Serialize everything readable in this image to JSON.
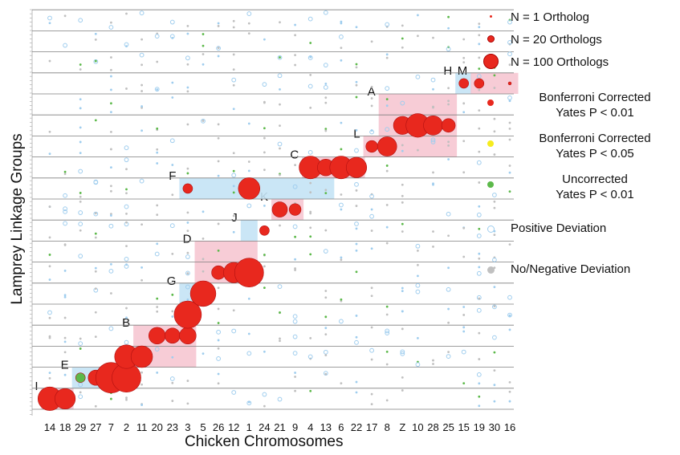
{
  "chart_data": {
    "type": "scatter",
    "xlabel": "Chicken Chromosomes",
    "ylabel": "Lamprey Linkage Groups",
    "x_categories": [
      "14",
      "18",
      "29",
      "27",
      "7",
      "2",
      "11",
      "20",
      "23",
      "3",
      "5",
      "26",
      "12",
      "1",
      "24",
      "21",
      "9",
      "4",
      "13",
      "6",
      "22",
      "17",
      "8",
      "Z",
      "10",
      "28",
      "25",
      "15",
      "19",
      "30",
      "16"
    ],
    "y_rows": 19,
    "legend": [
      {
        "key": "n1",
        "label": "N = 1 Ortholog",
        "type": "size",
        "color": "#e8281e",
        "size_n": 1
      },
      {
        "key": "n20",
        "label": "N = 20 Orthologs",
        "type": "size",
        "color": "#e8281e",
        "size_n": 20
      },
      {
        "key": "n100",
        "label": "N = 100 Orthologs",
        "type": "size",
        "color": "#e8281e",
        "size_n": 100
      },
      {
        "key": "bonf01",
        "label": "Bonferroni Corrected\nYates P < 0.01",
        "type": "category",
        "color": "#e8281e"
      },
      {
        "key": "bonf05",
        "label": "Bonferroni Corrected\nYates P < 0.05",
        "type": "category",
        "color": "#f6ec1e"
      },
      {
        "key": "uncorr",
        "label": "Uncorrected\nYates P < 0.01",
        "type": "category",
        "color": "#5cb94a"
      },
      {
        "key": "pos",
        "label": "Positive Deviation",
        "type": "category",
        "color": "#9fcdee"
      },
      {
        "key": "neg",
        "label": "No/Negative Deviation",
        "type": "category",
        "color": "#c0c0c0"
      }
    ],
    "blocks": [
      {
        "label": "I",
        "color": "pink",
        "x": [
          "14",
          "18"
        ],
        "rows": [
          1,
          1
        ]
      },
      {
        "label": "E",
        "color": "blue",
        "x": [
          "29",
          "27"
        ],
        "rows": [
          2,
          2
        ]
      },
      {
        "label": "B",
        "color": "pink",
        "x": [
          "11",
          "3"
        ],
        "rows": [
          3,
          4
        ]
      },
      {
        "label": "G",
        "color": "blue",
        "x": [
          "3",
          "3"
        ],
        "rows": [
          5,
          6
        ]
      },
      {
        "label": "D",
        "color": "pink",
        "x": [
          "5",
          "1"
        ],
        "rows": [
          7,
          8
        ]
      },
      {
        "label": "J",
        "color": "blue",
        "x": [
          "1",
          "1"
        ],
        "rows": [
          9,
          9
        ]
      },
      {
        "label": "K",
        "color": "pink",
        "x": [
          "21",
          "9"
        ],
        "rows": [
          10,
          10
        ]
      },
      {
        "label": "F",
        "color": "blue",
        "x": [
          "3",
          "13"
        ],
        "rows": [
          11,
          11
        ]
      },
      {
        "label": "C",
        "color": "pink",
        "x": [
          "4",
          "22"
        ],
        "rows": [
          12,
          12
        ]
      },
      {
        "label": "L",
        "color": "pink",
        "x": [
          "17",
          "17"
        ],
        "rows": [
          13,
          13
        ]
      },
      {
        "label": "A",
        "color": "pink",
        "x": [
          "8",
          "25"
        ],
        "rows": [
          13,
          15
        ]
      },
      {
        "label": "H",
        "color": "blue",
        "x": [
          "15",
          "15"
        ],
        "rows": [
          16,
          16
        ]
      },
      {
        "label": "M",
        "color": "pink",
        "x": [
          "19",
          "16"
        ],
        "rows": [
          16,
          16
        ]
      }
    ],
    "points": [
      {
        "x": "14",
        "row": 1,
        "n": 60,
        "c": "red"
      },
      {
        "x": "18",
        "row": 1,
        "n": 45,
        "c": "red"
      },
      {
        "x": "29",
        "row": 2,
        "n": 10,
        "c": "green"
      },
      {
        "x": "27",
        "row": 2,
        "n": 25,
        "c": "red"
      },
      {
        "x": "7",
        "row": 2,
        "n": 100,
        "c": "red"
      },
      {
        "x": "2",
        "row": 2,
        "n": 90,
        "c": "red"
      },
      {
        "x": "2",
        "row": 3,
        "n": 60,
        "c": "red"
      },
      {
        "x": "11",
        "row": 3,
        "n": 50,
        "c": "red"
      },
      {
        "x": "20",
        "row": 4,
        "n": 30,
        "c": "red"
      },
      {
        "x": "23",
        "row": 4,
        "n": 25,
        "c": "red"
      },
      {
        "x": "3",
        "row": 4,
        "n": 30,
        "c": "red"
      },
      {
        "x": "3",
        "row": 5,
        "n": 80,
        "c": "red"
      },
      {
        "x": "5",
        "row": 6,
        "n": 70,
        "c": "red"
      },
      {
        "x": "26",
        "row": 7,
        "n": 20,
        "c": "red"
      },
      {
        "x": "12",
        "row": 7,
        "n": 45,
        "c": "red"
      },
      {
        "x": "1",
        "row": 7,
        "n": 90,
        "c": "red"
      },
      {
        "x": "24",
        "row": 9,
        "n": 10,
        "c": "red"
      },
      {
        "x": "21",
        "row": 10,
        "n": 25,
        "c": "red"
      },
      {
        "x": "9",
        "row": 10,
        "n": 15,
        "c": "red"
      },
      {
        "x": "3",
        "row": 11,
        "n": 10,
        "c": "red"
      },
      {
        "x": "1",
        "row": 11,
        "n": 50,
        "c": "red"
      },
      {
        "x": "4",
        "row": 12,
        "n": 55,
        "c": "red"
      },
      {
        "x": "13",
        "row": 12,
        "n": 30,
        "c": "red"
      },
      {
        "x": "6",
        "row": 12,
        "n": 55,
        "c": "red"
      },
      {
        "x": "22",
        "row": 12,
        "n": 45,
        "c": "red"
      },
      {
        "x": "17",
        "row": 13,
        "n": 15,
        "c": "red"
      },
      {
        "x": "8",
        "row": 13,
        "n": 40,
        "c": "red"
      },
      {
        "x": "Z",
        "row": 14,
        "n": 35,
        "c": "red"
      },
      {
        "x": "10",
        "row": 14,
        "n": 60,
        "c": "red"
      },
      {
        "x": "28",
        "row": 14,
        "n": 40,
        "c": "red"
      },
      {
        "x": "25",
        "row": 14,
        "n": 20,
        "c": "red"
      },
      {
        "x": "15",
        "row": 16,
        "n": 10,
        "c": "red"
      },
      {
        "x": "19",
        "row": 16,
        "n": 10,
        "c": "red"
      },
      {
        "x": "16",
        "row": 16,
        "n": 1,
        "c": "red"
      }
    ]
  },
  "annotations": [
    "A",
    "B",
    "C",
    "D",
    "E",
    "F",
    "G",
    "H",
    "I",
    "J",
    "K",
    "L",
    "M"
  ]
}
